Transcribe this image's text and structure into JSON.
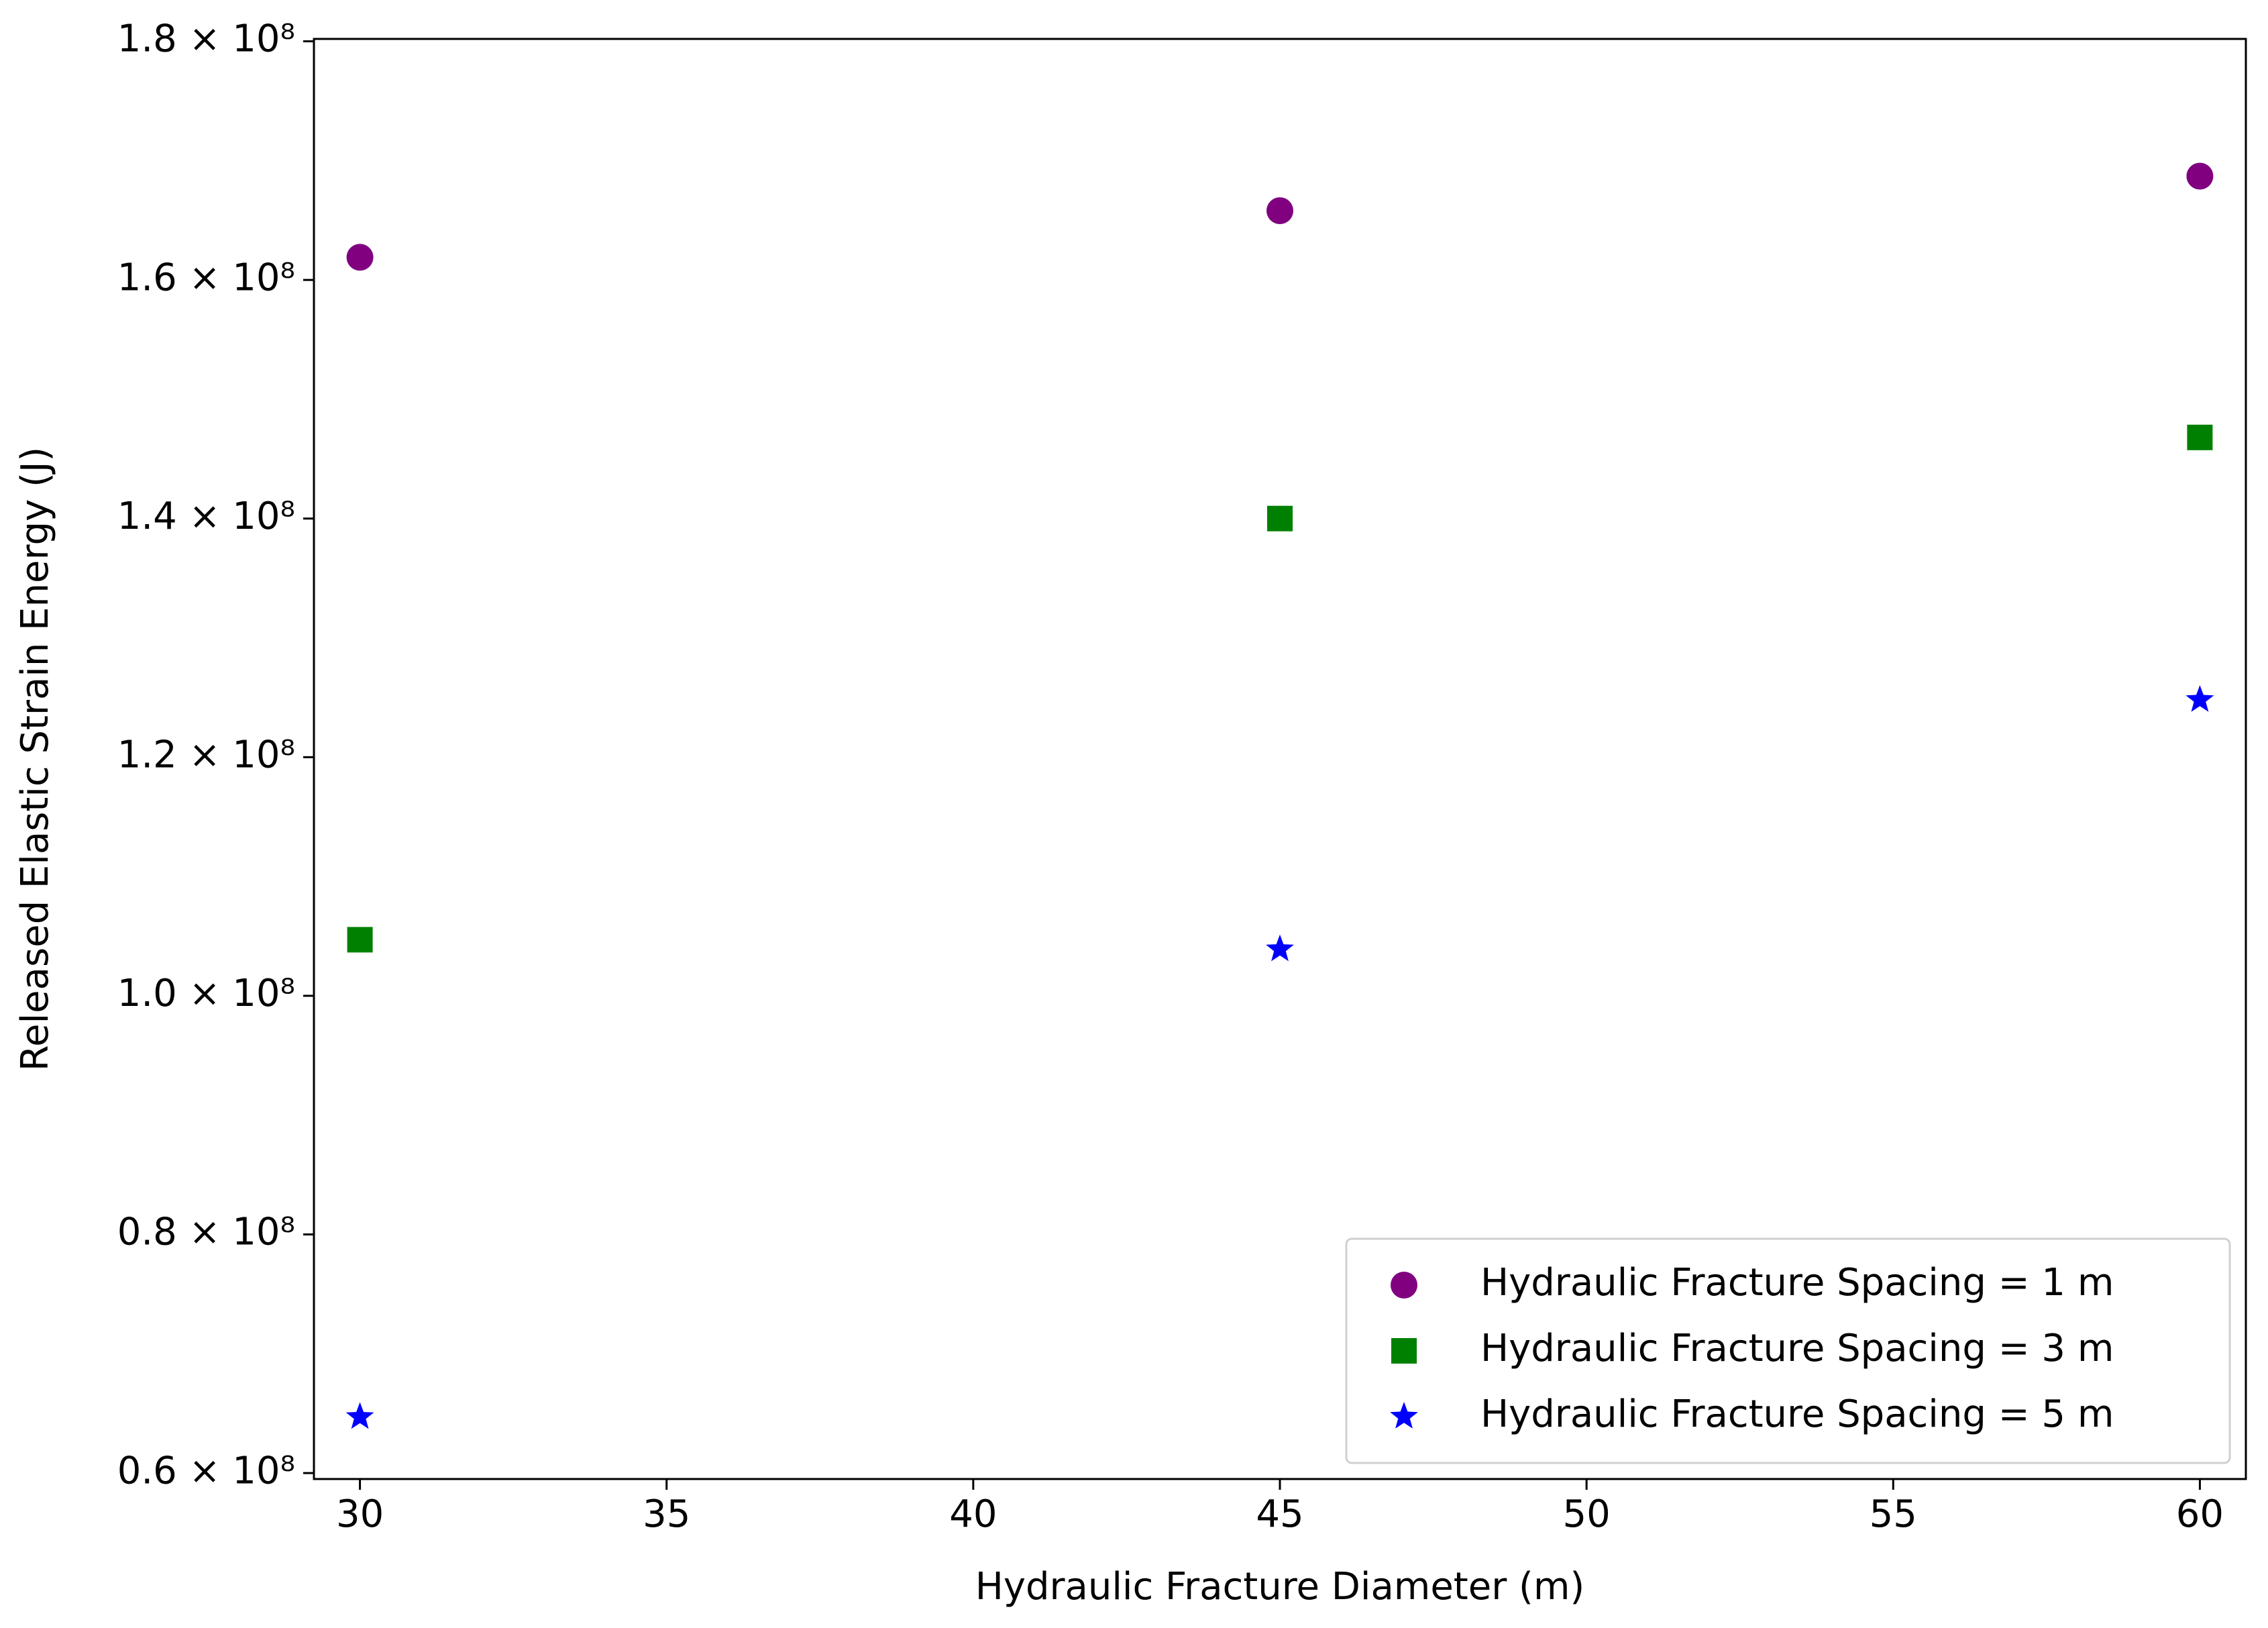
{
  "chart_data": {
    "type": "scatter",
    "x_label": "Hydraulic Fracture Diameter (m)",
    "y_label": "Released Elastic Strain Energy (J)",
    "x": [
      30,
      45,
      60
    ],
    "series": [
      {
        "name": "Hydraulic Fracture Spacing = 1 m",
        "color": "#800080",
        "marker": "o",
        "values": [
          161900000,
          165800000,
          168700000
        ]
      },
      {
        "name": "Hydraulic Fracture Spacing = 3 m",
        "color": "#008000",
        "marker": "s",
        "values": [
          104700000,
          140000000,
          146800000
        ]
      },
      {
        "name": "Hydraulic Fracture Spacing = 5 m",
        "color": "#0000ff",
        "marker": "*",
        "values": [
          64700000,
          103900000,
          124800000
        ]
      }
    ],
    "xlim": [
      29.25,
      60.75
    ],
    "xticks": [
      30,
      35,
      40,
      45,
      50,
      55,
      60
    ],
    "ylim": [
      59500000,
      180200000
    ],
    "yticks": [
      {
        "value": 60000000,
        "label": "0.6 × 10⁸"
      },
      {
        "value": 80000000,
        "label": "0.8 × 10⁸"
      },
      {
        "value": 100000000,
        "label": "1.0 × 10⁸"
      },
      {
        "value": 120000000,
        "label": "1.2 × 10⁸"
      },
      {
        "value": 140000000,
        "label": "1.4 × 10⁸"
      },
      {
        "value": 160000000,
        "label": "1.6 × 10⁸"
      },
      {
        "value": 180000000,
        "label": "1.8 × 10⁸"
      }
    ],
    "grid": false,
    "legend": "lower right"
  }
}
